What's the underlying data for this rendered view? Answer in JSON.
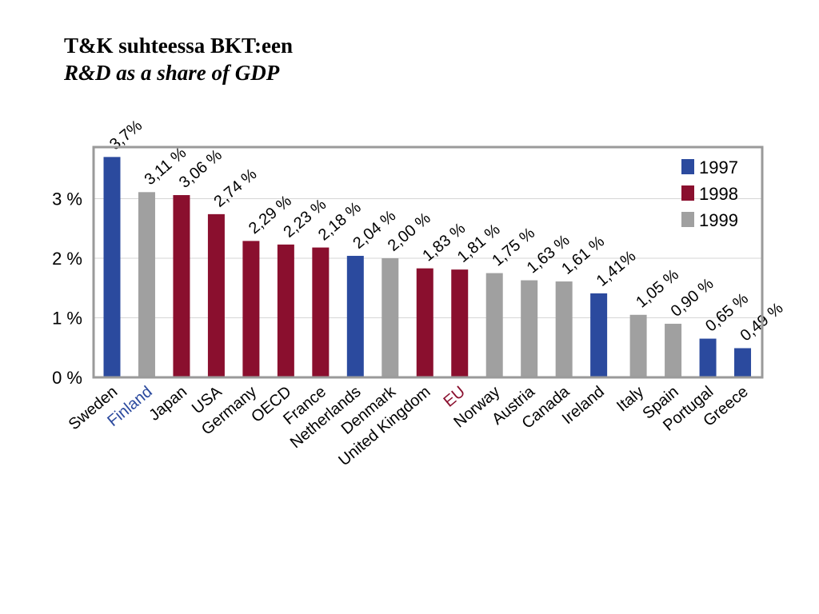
{
  "slide": {
    "title_fi": "T&K suhteessa BKT:een",
    "title_en": "R&D as a share of GDP"
  },
  "colors": {
    "1997": "#2b4a9e",
    "1998": "#8a0f2e",
    "1999": "#a0a0a0",
    "frame": "#9a9a9a",
    "grid": "#d6d6d6",
    "label_default": "#000000"
  },
  "chart_data": {
    "type": "bar",
    "title": "",
    "xlabel": "",
    "ylabel": "",
    "ylim": [
      0,
      4.0
    ],
    "yticks": [
      {
        "value": 0,
        "label": "0 %"
      },
      {
        "value": 1,
        "label": "1 %"
      },
      {
        "value": 2,
        "label": "2 %"
      },
      {
        "value": 3,
        "label": "3 %"
      }
    ],
    "grid": true,
    "legend": {
      "position": "top-right",
      "entries": [
        {
          "name": "1997",
          "color": "#2b4a9e"
        },
        {
          "name": "1998",
          "color": "#8a0f2e"
        },
        {
          "name": "1999",
          "color": "#a0a0a0"
        }
      ]
    },
    "bars": [
      {
        "country": "Sweden",
        "value": 3.7,
        "label": "3,7%",
        "year": "1997",
        "label_color": "#000000"
      },
      {
        "country": "Finland",
        "value": 3.11,
        "label": "3,11 %",
        "year": "1999",
        "label_color": "#2b4a9e"
      },
      {
        "country": "Japan",
        "value": 3.06,
        "label": "3,06 %",
        "year": "1998",
        "label_color": "#000000"
      },
      {
        "country": "USA",
        "value": 2.74,
        "label": "2,74 %",
        "year": "1998",
        "label_color": "#000000"
      },
      {
        "country": "Germany",
        "value": 2.29,
        "label": "2,29 %",
        "year": "1998",
        "label_color": "#000000"
      },
      {
        "country": "OECD",
        "value": 2.23,
        "label": "2,23 %",
        "year": "1998",
        "label_color": "#000000"
      },
      {
        "country": "France",
        "value": 2.18,
        "label": "2,18 %",
        "year": "1998",
        "label_color": "#000000"
      },
      {
        "country": "Netherlands",
        "value": 2.04,
        "label": "2,04 %",
        "year": "1997",
        "label_color": "#000000"
      },
      {
        "country": "Denmark",
        "value": 2.0,
        "label": "2,00 %",
        "year": "1999",
        "label_color": "#000000"
      },
      {
        "country": "United Kingdom",
        "value": 1.83,
        "label": "1,83 %",
        "year": "1998",
        "label_color": "#000000"
      },
      {
        "country": "EU",
        "value": 1.81,
        "label": "1,81 %",
        "year": "1998",
        "label_color": "#8a0f2e"
      },
      {
        "country": "Norway",
        "value": 1.75,
        "label": "1,75 %",
        "year": "1999",
        "label_color": "#000000"
      },
      {
        "country": "Austria",
        "value": 1.63,
        "label": "1,63 %",
        "year": "1999",
        "label_color": "#000000"
      },
      {
        "country": "Canada",
        "value": 1.61,
        "label": "1,61 %",
        "year": "1999",
        "label_color": "#000000"
      },
      {
        "country": "Ireland",
        "value": 1.41,
        "label": "1,41%",
        "year": "1997",
        "label_color": "#000000"
      },
      {
        "country": "Italy",
        "value": 1.05,
        "label": "1,05 %",
        "year": "1999",
        "label_color": "#000000"
      },
      {
        "country": "Spain",
        "value": 0.9,
        "label": "0,90 %",
        "year": "1999",
        "label_color": "#000000"
      },
      {
        "country": "Portugal",
        "value": 0.65,
        "label": "0,65 %",
        "year": "1997",
        "label_color": "#000000"
      },
      {
        "country": "Greece",
        "value": 0.49,
        "label": "0,49 %",
        "year": "1997",
        "label_color": "#000000"
      }
    ]
  }
}
